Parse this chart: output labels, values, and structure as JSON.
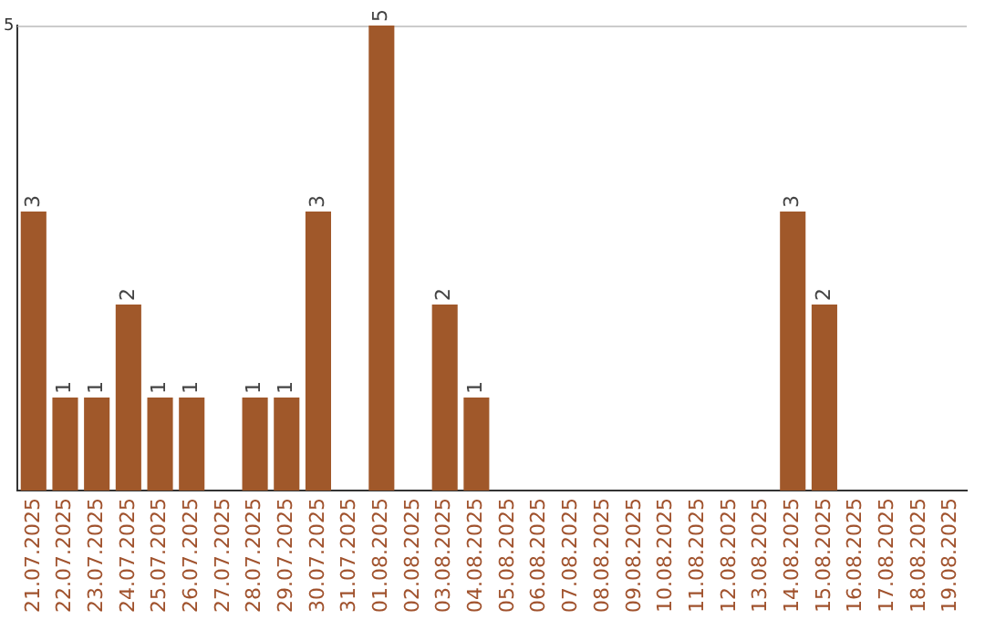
{
  "chart_data": {
    "type": "bar",
    "categories": [
      "21.07.2025",
      "22.07.2025",
      "23.07.2025",
      "24.07.2025",
      "25.07.2025",
      "26.07.2025",
      "27.07.2025",
      "28.07.2025",
      "29.07.2025",
      "30.07.2025",
      "31.07.2025",
      "01.08.2025",
      "02.08.2025",
      "03.08.2025",
      "04.08.2025",
      "05.08.2025",
      "06.08.2025",
      "07.08.2025",
      "08.08.2025",
      "09.08.2025",
      "10.08.2025",
      "11.08.2025",
      "12.08.2025",
      "13.08.2025",
      "14.08.2025",
      "15.08.2025",
      "16.08.2025",
      "17.08.2025",
      "18.08.2025",
      "19.08.2025"
    ],
    "values": [
      3,
      1,
      1,
      2,
      1,
      1,
      0,
      1,
      1,
      3,
      0,
      5,
      0,
      2,
      1,
      0,
      0,
      0,
      0,
      0,
      0,
      0,
      0,
      0,
      3,
      2,
      0,
      0,
      0,
      0
    ],
    "value_labels": [
      "3",
      "1",
      "1",
      "2",
      "1",
      "1",
      null,
      "1",
      "1",
      "3",
      null,
      "5",
      null,
      "2",
      "1",
      null,
      null,
      null,
      null,
      null,
      null,
      null,
      null,
      null,
      "3",
      "2",
      null,
      null,
      null,
      null
    ],
    "color": "#a0582a",
    "ylim": [
      0,
      5
    ],
    "yticks": [
      5
    ],
    "ref_lines": [
      {
        "axis": "y",
        "value": 5,
        "color": "#cccccc"
      }
    ],
    "legend": false
  }
}
